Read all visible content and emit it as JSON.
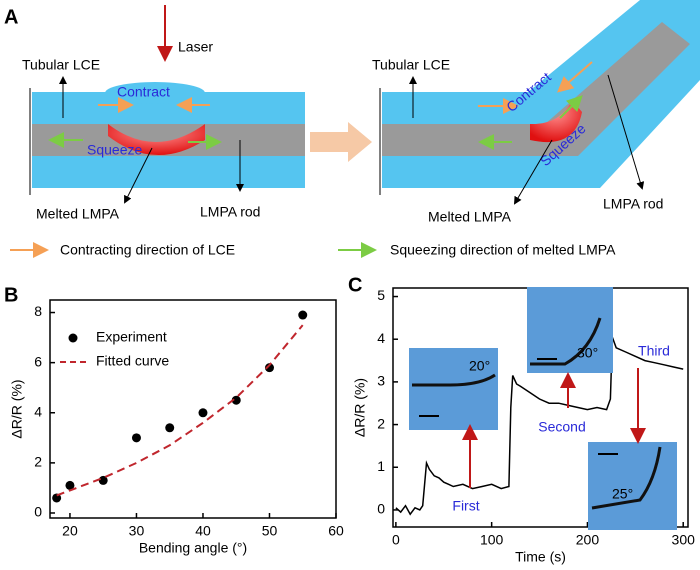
{
  "panel_a": {
    "label": "A",
    "left": {
      "laser": "Laser",
      "tube": "Tubular LCE",
      "contract": "Contract",
      "squeeze": "Squeeze",
      "melted": "Melted LMPA",
      "rod": "LMPA rod"
    },
    "right": {
      "tube": "Tubular LCE",
      "contract": "Contract",
      "squeeze": "Squeeze",
      "melted": "Melted LMPA",
      "rod": "LMPA rod"
    },
    "legend": [
      "Contracting direction of LCE",
      "Squeezing direction of melted LMPA"
    ]
  },
  "chart_data": [
    {
      "label": "B",
      "type": "scatter",
      "xlabel": "Bending angle (°)",
      "ylabel": "ΔR/R (%)",
      "xlim": [
        17,
        60
      ],
      "ylim": [
        -0.2,
        8.5
      ],
      "xticks": [
        20,
        30,
        40,
        50,
        60
      ],
      "yticks": [
        0,
        2,
        4,
        6,
        8
      ],
      "legend": "upper left",
      "series": [
        {
          "name": "Experiment",
          "type": "scatter",
          "color": "#000000",
          "x": [
            18,
            20,
            25,
            30,
            35,
            40,
            45,
            50,
            55
          ],
          "values": [
            0.6,
            1.1,
            1.3,
            3.0,
            3.4,
            4.0,
            4.5,
            5.8,
            7.9
          ]
        },
        {
          "name": "Fitted curve",
          "type": "line",
          "dashed": true,
          "color": "#c0262d",
          "x": [
            18,
            20,
            25,
            30,
            35,
            40,
            45,
            50,
            55
          ],
          "values": [
            0.7,
            0.9,
            1.4,
            2.0,
            2.7,
            3.6,
            4.6,
            5.9,
            7.5
          ]
        }
      ]
    },
    {
      "label": "C",
      "type": "line",
      "xlabel": "Time (s)",
      "ylabel": "ΔR/R (%)",
      "xlim": [
        -3,
        305
      ],
      "ylim": [
        -0.4,
        5.2
      ],
      "xticks": [
        0,
        100,
        200,
        300
      ],
      "yticks": [
        0,
        1,
        2,
        3,
        4,
        5
      ],
      "color": "#000000",
      "x": [
        0,
        5,
        10,
        15,
        20,
        25,
        28,
        30,
        32,
        35,
        40,
        45,
        50,
        55,
        60,
        70,
        80,
        90,
        100,
        110,
        118,
        120,
        122,
        126,
        130,
        140,
        150,
        160,
        170,
        180,
        190,
        200,
        210,
        220,
        224,
        226,
        230,
        240,
        250,
        260,
        270,
        280,
        290,
        300
      ],
      "values": [
        0.05,
        -0.05,
        0.1,
        -0.1,
        0.05,
        0.0,
        0.1,
        0.6,
        1.1,
        0.95,
        0.8,
        0.75,
        0.65,
        0.6,
        0.55,
        0.6,
        0.5,
        0.55,
        0.6,
        0.5,
        0.55,
        2.4,
        3.15,
        2.95,
        2.9,
        2.75,
        2.6,
        2.5,
        2.5,
        2.45,
        2.4,
        2.35,
        2.4,
        2.35,
        2.6,
        4.05,
        3.8,
        3.7,
        3.6,
        3.5,
        3.45,
        3.4,
        3.35,
        3.3
      ],
      "annotations": [
        "First",
        "Second",
        "Third"
      ],
      "insets": [
        "20°",
        "30°",
        "25°"
      ]
    }
  ]
}
